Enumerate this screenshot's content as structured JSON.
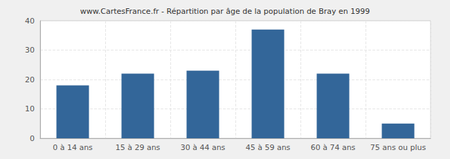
{
  "chart_data": {
    "type": "bar",
    "title": "www.CartesFrance.fr - Répartition par âge de la population de Bray en 1999",
    "categories": [
      "0 à 14 ans",
      "15 à 29 ans",
      "30 à 44 ans",
      "45 à 59 ans",
      "60 à 74 ans",
      "75 ans ou plus"
    ],
    "values": [
      18,
      22,
      23,
      37,
      22,
      5
    ],
    "color": "#336699",
    "ylim": [
      0,
      40
    ],
    "yticks": [
      0,
      10,
      20,
      30,
      40
    ],
    "grid": true
  }
}
